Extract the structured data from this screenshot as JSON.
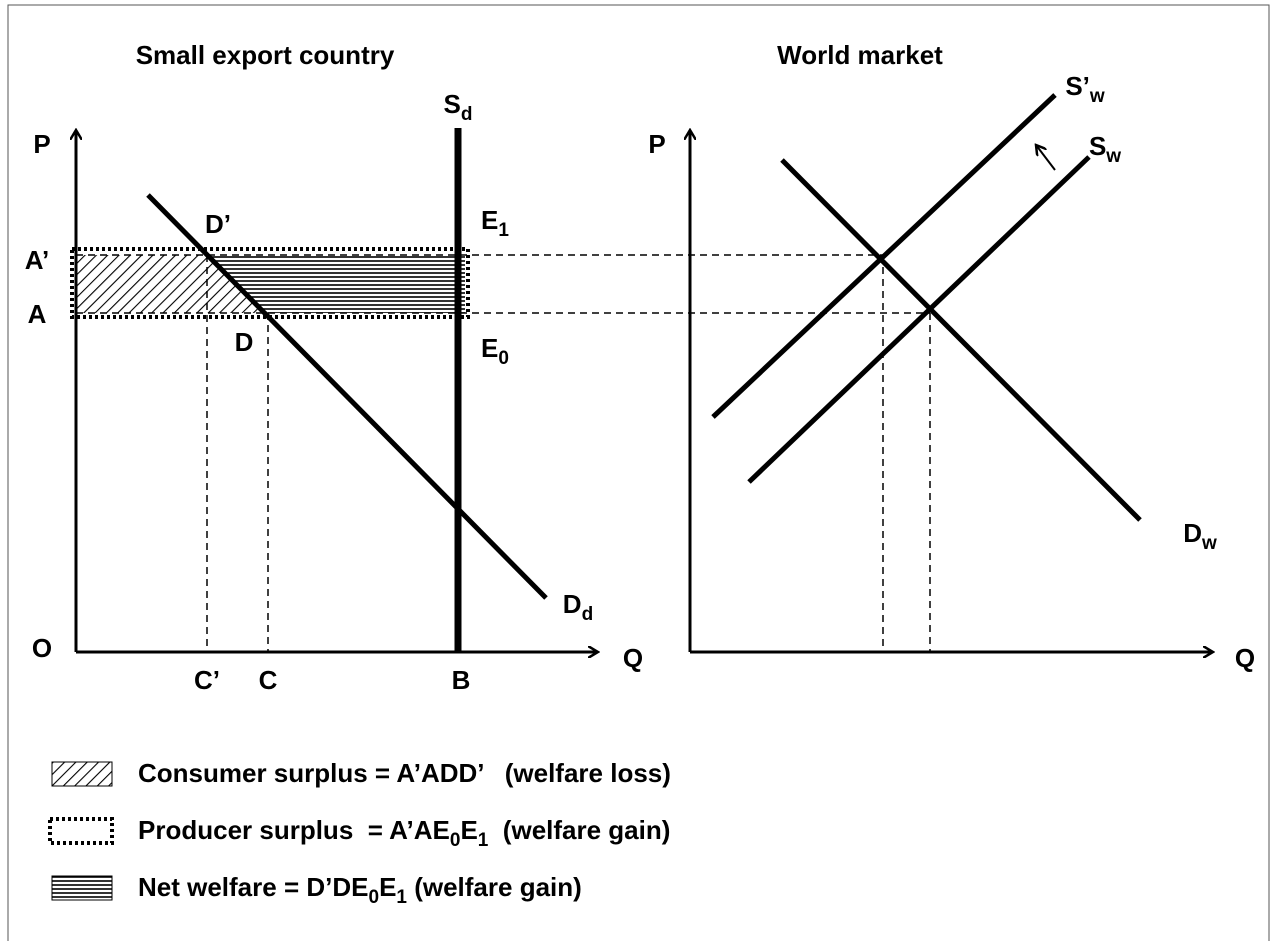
{
  "left_panel": {
    "title": "Small export country",
    "labels": [
      {
        "text": "S",
        "sub": "d"
      },
      {
        "text": "P"
      },
      {
        "text": "O"
      },
      {
        "text": "Q"
      },
      {
        "text": "A’"
      },
      {
        "text": "A"
      },
      {
        "text": "D’"
      },
      {
        "text": "D"
      },
      {
        "text": "E",
        "sub": "1"
      },
      {
        "text": "E",
        "sub": "0"
      },
      {
        "text": "C’"
      },
      {
        "text": "C"
      },
      {
        "text": "B"
      },
      {
        "text": "D",
        "sub": "d"
      }
    ]
  },
  "right_panel": {
    "title": "World market",
    "labels": [
      {
        "text": "S’",
        "sub": "w"
      },
      {
        "text": "S",
        "sub": "w"
      },
      {
        "text": "P"
      },
      {
        "text": "Q"
      },
      {
        "text": "D",
        "sub": "w"
      }
    ]
  },
  "legend": [
    {
      "parts": [
        {
          "text": "Consumer surplus = A’ADD’   (welfare loss)"
        }
      ]
    },
    {
      "parts": [
        {
          "text": "Producer surplus  = A’AE"
        },
        {
          "sub": "0"
        },
        {
          "text": "E"
        },
        {
          "sub": "1"
        },
        {
          "text": "  (welfare gain)"
        }
      ]
    },
    {
      "parts": [
        {
          "text": "Net welfare = D’DE"
        },
        {
          "sub": "0"
        },
        {
          "text": "E"
        },
        {
          "sub": "1"
        },
        {
          "text": " (welfare gain)"
        }
      ]
    }
  ]
}
